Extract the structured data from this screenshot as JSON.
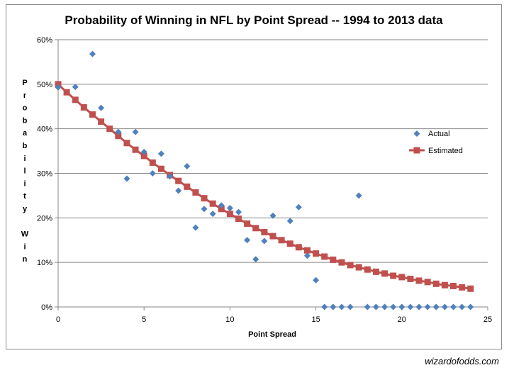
{
  "credit": "wizardofodds.com",
  "chart_data": {
    "type": "scatter",
    "title": "Probability of Winning in NFL by Point Spread -- 1994 to 2013 data",
    "xlabel": "Point Spread",
    "ylabel_letters": [
      "P",
      "r",
      "o",
      "b",
      "a",
      "b",
      "i",
      "l",
      "i",
      "t",
      "y",
      "",
      "W",
      "i",
      "n"
    ],
    "xlim": [
      0,
      25
    ],
    "ylim": [
      0,
      0.6
    ],
    "xticks": [
      0,
      5,
      10,
      15,
      20,
      25
    ],
    "xtick_labels": [
      "0",
      "5",
      "10",
      "15",
      "20",
      "25"
    ],
    "yticks": [
      0,
      0.1,
      0.2,
      0.3,
      0.4,
      0.5,
      0.6
    ],
    "ytick_labels": [
      "0%",
      "10%",
      "20%",
      "30%",
      "40%",
      "50%",
      "60%"
    ],
    "grid": "horizontal",
    "legend_position": "right",
    "colors": {
      "actual": "#4f81bd",
      "estimated": "#c0504d",
      "grid": "#868686"
    },
    "series": [
      {
        "name": "Actual",
        "style": "markers-diamond",
        "points": [
          [
            0,
            0.493
          ],
          [
            1,
            0.494
          ],
          [
            2,
            0.568
          ],
          [
            2.5,
            0.447
          ],
          [
            3.5,
            0.393
          ],
          [
            4,
            0.288
          ],
          [
            4.5,
            0.393
          ],
          [
            5,
            0.348
          ],
          [
            5.5,
            0.3
          ],
          [
            6,
            0.344
          ],
          [
            6.5,
            0.293
          ],
          [
            7,
            0.261
          ],
          [
            7.5,
            0.316
          ],
          [
            8,
            0.178
          ],
          [
            8.5,
            0.22
          ],
          [
            9,
            0.209
          ],
          [
            9.5,
            0.228
          ],
          [
            10,
            0.222
          ],
          [
            10.5,
            0.213
          ],
          [
            11,
            0.15
          ],
          [
            11.5,
            0.107
          ],
          [
            12,
            0.148
          ],
          [
            12.5,
            0.205
          ],
          [
            13.5,
            0.193
          ],
          [
            14,
            0.224
          ],
          [
            14.5,
            0.115
          ],
          [
            15,
            0.06
          ],
          [
            15.5,
            0
          ],
          [
            16,
            0
          ],
          [
            16.5,
            0
          ],
          [
            17,
            0
          ],
          [
            17.5,
            0.25
          ],
          [
            18,
            0
          ],
          [
            18.5,
            0
          ],
          [
            19,
            0
          ],
          [
            19.5,
            0
          ],
          [
            20,
            0
          ],
          [
            20.5,
            0
          ],
          [
            21,
            0
          ],
          [
            21.5,
            0
          ],
          [
            22,
            0
          ],
          [
            22.5,
            0
          ],
          [
            23,
            0
          ],
          [
            23.5,
            0
          ],
          [
            24,
            0
          ]
        ]
      },
      {
        "name": "Estimated",
        "style": "line-squares",
        "points": [
          [
            0,
            0.5
          ],
          [
            0.5,
            0.482
          ],
          [
            1,
            0.465
          ],
          [
            1.5,
            0.448
          ],
          [
            2,
            0.432
          ],
          [
            2.5,
            0.416
          ],
          [
            3,
            0.4
          ],
          [
            3.5,
            0.384
          ],
          [
            4,
            0.368
          ],
          [
            4.5,
            0.353
          ],
          [
            5,
            0.339
          ],
          [
            5.5,
            0.324
          ],
          [
            6,
            0.31
          ],
          [
            6.5,
            0.296
          ],
          [
            7,
            0.283
          ],
          [
            7.5,
            0.27
          ],
          [
            8,
            0.257
          ],
          [
            8.5,
            0.244
          ],
          [
            9,
            0.232
          ],
          [
            9.5,
            0.22
          ],
          [
            10,
            0.209
          ],
          [
            10.5,
            0.198
          ],
          [
            11,
            0.187
          ],
          [
            11.5,
            0.177
          ],
          [
            12,
            0.168
          ],
          [
            12.5,
            0.159
          ],
          [
            13,
            0.15
          ],
          [
            13.5,
            0.142
          ],
          [
            14,
            0.134
          ],
          [
            14.5,
            0.127
          ],
          [
            15,
            0.12
          ],
          [
            15.5,
            0.113
          ],
          [
            16,
            0.106
          ],
          [
            16.5,
            0.1
          ],
          [
            17,
            0.094
          ],
          [
            17.5,
            0.089
          ],
          [
            18,
            0.084
          ],
          [
            18.5,
            0.079
          ],
          [
            19,
            0.075
          ],
          [
            19.5,
            0.07
          ],
          [
            20,
            0.067
          ],
          [
            20.5,
            0.063
          ],
          [
            21,
            0.059
          ],
          [
            21.5,
            0.056
          ],
          [
            22,
            0.052
          ],
          [
            22.5,
            0.049
          ],
          [
            23,
            0.047
          ],
          [
            23.5,
            0.044
          ],
          [
            24,
            0.041
          ]
        ]
      }
    ]
  }
}
